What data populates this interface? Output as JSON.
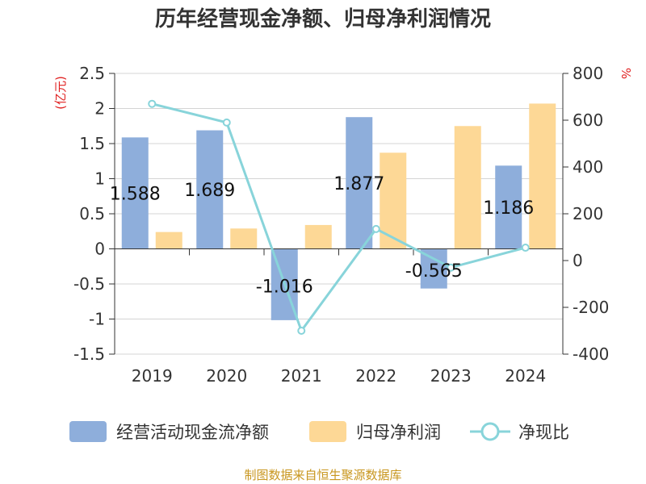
{
  "chart_data": {
    "type": "bar",
    "title": "历年经营现金净额、归母净利润情况",
    "categories": [
      "2019",
      "2020",
      "2021",
      "2022",
      "2023",
      "2024"
    ],
    "left_axis": {
      "unit": "(亿元)",
      "ylim": [
        -1.5,
        2.5
      ],
      "ticks": [
        "2.5",
        "2",
        "1.5",
        "1",
        "0.5",
        "0",
        "-0.5",
        "-1",
        "-1.5"
      ]
    },
    "right_axis": {
      "unit": "%",
      "ylim": [
        -400,
        800
      ],
      "ticks": [
        "800",
        "600",
        "400",
        "200",
        "0",
        "-200",
        "-400"
      ]
    },
    "series": [
      {
        "name": "经营活动现金流净额",
        "type": "bar",
        "axis": "left",
        "color": "#8eaedb",
        "values": [
          1.588,
          1.689,
          -1.016,
          1.877,
          -0.565,
          1.186
        ],
        "labels": [
          "1.588",
          "1.689",
          "-1.016",
          "1.877",
          "-0.565",
          "1.186"
        ]
      },
      {
        "name": "归母净利润",
        "type": "bar",
        "axis": "left",
        "color": "#fdd896",
        "values": [
          0.24,
          0.29,
          0.34,
          1.37,
          1.75,
          2.07
        ]
      },
      {
        "name": "净现比",
        "type": "line",
        "axis": "right",
        "color": "#88d4da",
        "values": [
          670,
          590,
          -300,
          135,
          -30,
          55
        ]
      }
    ],
    "grid": true,
    "legend_position": "bottom"
  },
  "footer": {
    "source": "制图数据来自恒生聚源数据库"
  }
}
